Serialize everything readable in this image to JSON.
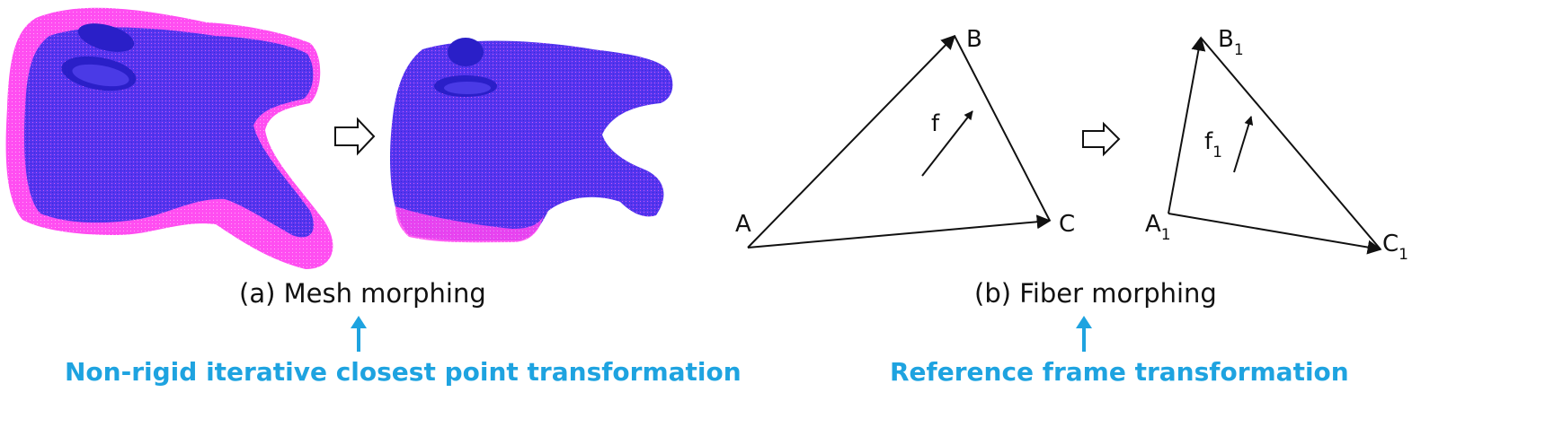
{
  "panel_a": {
    "caption": "(a) Mesh morphing",
    "method": "Non-rigid iterative closest point transformation"
  },
  "panel_b": {
    "caption": "(b) Fiber morphing",
    "method": "Reference frame transformation",
    "triangle_before": {
      "vertex_a": "A",
      "vertex_b": "B",
      "vertex_c": "C",
      "fiber": "f"
    },
    "triangle_after": {
      "vertex_a": "A",
      "vertex_a_sub": "1",
      "vertex_b": "B",
      "vertex_b_sub": "1",
      "vertex_c": "C",
      "vertex_c_sub": "1",
      "fiber": "f",
      "fiber_sub": "1"
    }
  },
  "colors": {
    "mesh_outer": "#ff3ef2",
    "mesh_inner": "#5a2cf0",
    "mesh_dark": "#2a1fc8",
    "accent": "#1ea3e0",
    "line": "#111111"
  }
}
